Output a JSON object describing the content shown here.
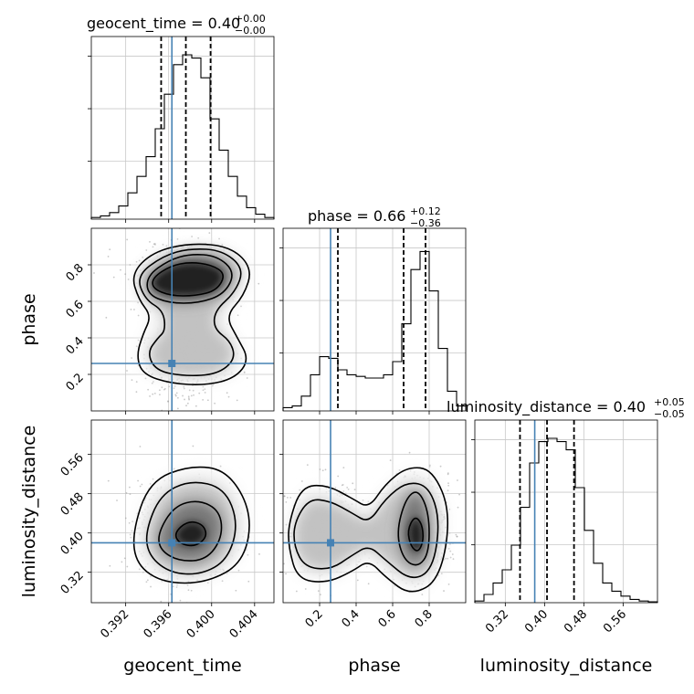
{
  "chart_data": {
    "type": "corner",
    "parameters": [
      "geocent_time",
      "phase",
      "luminosity_distance"
    ],
    "truth_color": "#4682b4",
    "truths": {
      "geocent_time": 0.3963,
      "phase": 0.26,
      "luminosity_distance": 0.38
    },
    "ranges": {
      "geocent_time": [
        0.3888,
        0.4058
      ],
      "phase": [
        0.0,
        1.0
      ],
      "luminosity_distance": [
        0.258,
        0.63
      ]
    },
    "ticks": {
      "geocent_time": [
        {
          "v": 0.392,
          "label": "0.392"
        },
        {
          "v": 0.396,
          "label": "0.396"
        },
        {
          "v": 0.4,
          "label": "0.400"
        },
        {
          "v": 0.404,
          "label": "0.404"
        }
      ],
      "phase": [
        {
          "v": 0.2,
          "label": "0.2"
        },
        {
          "v": 0.4,
          "label": "0.4"
        },
        {
          "v": 0.6,
          "label": "0.6"
        },
        {
          "v": 0.8,
          "label": "0.8"
        }
      ],
      "luminosity_distance": [
        {
          "v": 0.32,
          "label": "0.32"
        },
        {
          "v": 0.4,
          "label": "0.40"
        },
        {
          "v": 0.48,
          "label": "0.48"
        },
        {
          "v": 0.56,
          "label": "0.56"
        }
      ]
    },
    "axis_labels": {
      "x": [
        "geocent_time",
        "phase",
        "luminosity_distance"
      ],
      "y": [
        "phase",
        "luminosity_distance"
      ]
    },
    "titles": [
      {
        "param": "geocent_time",
        "main": "geocent_time = 0.40",
        "sup": "+0.00",
        "sub": "−0.00"
      },
      {
        "param": "phase",
        "main": "phase = 0.66",
        "sup": "+0.12",
        "sub": "−0.36"
      },
      {
        "param": "luminosity_distance",
        "main": "luminosity_distance = 0.40",
        "sup": "+0.05",
        "sub": "−0.05"
      }
    ],
    "quantile_lines": {
      "geocent_time": [
        0.3953,
        0.3976,
        0.3999
      ],
      "phase": [
        0.3,
        0.66,
        0.78
      ],
      "luminosity_distance": [
        0.35,
        0.405,
        0.46
      ]
    },
    "histograms": {
      "geocent_time": {
        "range": [
          0.3888,
          0.4058
        ],
        "counts": [
          0.01,
          0.02,
          0.04,
          0.08,
          0.16,
          0.26,
          0.38,
          0.55,
          0.76,
          0.94,
          1.0,
          0.98,
          0.86,
          0.61,
          0.42,
          0.26,
          0.14,
          0.07,
          0.03,
          0.01
        ]
      },
      "phase": {
        "range": [
          0.0,
          1.0
        ],
        "counts": [
          0.02,
          0.03,
          0.09,
          0.22,
          0.33,
          0.32,
          0.25,
          0.22,
          0.21,
          0.2,
          0.2,
          0.22,
          0.3,
          0.53,
          0.86,
          0.97,
          0.73,
          0.38,
          0.12,
          0.03
        ]
      },
      "luminosity_distance": {
        "range": [
          0.258,
          0.63
        ],
        "counts": [
          0.01,
          0.05,
          0.12,
          0.2,
          0.35,
          0.58,
          0.85,
          0.98,
          1.0,
          0.98,
          0.93,
          0.7,
          0.44,
          0.24,
          0.12,
          0.07,
          0.04,
          0.02,
          0.01,
          0.005
        ]
      }
    },
    "contours_2d": {
      "phase_vs_geocent_time": [
        [
          [
            0.3945,
            0.73
          ],
          [
            0.3962,
            0.795
          ],
          [
            0.398,
            0.815
          ],
          [
            0.4,
            0.8
          ],
          [
            0.4013,
            0.75
          ],
          [
            0.4005,
            0.66
          ],
          [
            0.3985,
            0.63
          ],
          [
            0.3962,
            0.63
          ],
          [
            0.3945,
            0.67
          ]
        ],
        [
          [
            0.394,
            0.74
          ],
          [
            0.396,
            0.825
          ],
          [
            0.398,
            0.86
          ],
          [
            0.4005,
            0.85
          ],
          [
            0.4022,
            0.76
          ],
          [
            0.4012,
            0.64
          ],
          [
            0.3988,
            0.59
          ],
          [
            0.396,
            0.59
          ],
          [
            0.394,
            0.64
          ]
        ],
        [
          [
            0.393,
            0.74
          ],
          [
            0.3955,
            0.85
          ],
          [
            0.398,
            0.89
          ],
          [
            0.401,
            0.88
          ],
          [
            0.403,
            0.78
          ],
          [
            0.4022,
            0.65
          ],
          [
            0.4003,
            0.55
          ],
          [
            0.4002,
            0.45
          ],
          [
            0.4018,
            0.38
          ],
          [
            0.4022,
            0.28
          ],
          [
            0.4005,
            0.2
          ],
          [
            0.3975,
            0.19
          ],
          [
            0.3948,
            0.22
          ],
          [
            0.394,
            0.32
          ],
          [
            0.395,
            0.4
          ],
          [
            0.3957,
            0.44
          ],
          [
            0.3955,
            0.55
          ],
          [
            0.3938,
            0.61
          ]
        ],
        [
          [
            0.3925,
            0.75
          ],
          [
            0.3945,
            0.87
          ],
          [
            0.398,
            0.92
          ],
          [
            0.4018,
            0.9
          ],
          [
            0.4038,
            0.78
          ],
          [
            0.403,
            0.63
          ],
          [
            0.4013,
            0.52
          ],
          [
            0.4024,
            0.4
          ],
          [
            0.4035,
            0.28
          ],
          [
            0.4022,
            0.18
          ],
          [
            0.3995,
            0.14
          ],
          [
            0.3962,
            0.15
          ],
          [
            0.3936,
            0.2
          ],
          [
            0.393,
            0.3
          ],
          [
            0.3936,
            0.42
          ],
          [
            0.3944,
            0.52
          ],
          [
            0.3932,
            0.61
          ]
        ]
      ],
      "luminosity_distance_vs_geocent_time": [
        [
          [
            0.3965,
            0.4
          ],
          [
            0.3978,
            0.425
          ],
          [
            0.3992,
            0.418
          ],
          [
            0.3996,
            0.393
          ],
          [
            0.3985,
            0.372
          ],
          [
            0.397,
            0.378
          ]
        ],
        [
          [
            0.395,
            0.4
          ],
          [
            0.3965,
            0.455
          ],
          [
            0.3988,
            0.468
          ],
          [
            0.4008,
            0.445
          ],
          [
            0.401,
            0.39
          ],
          [
            0.3995,
            0.345
          ],
          [
            0.397,
            0.342
          ],
          [
            0.3952,
            0.365
          ]
        ],
        [
          [
            0.3938,
            0.4
          ],
          [
            0.3952,
            0.478
          ],
          [
            0.398,
            0.508
          ],
          [
            0.4012,
            0.492
          ],
          [
            0.4025,
            0.42
          ],
          [
            0.4015,
            0.345
          ],
          [
            0.399,
            0.315
          ],
          [
            0.3962,
            0.318
          ],
          [
            0.3942,
            0.352
          ]
        ],
        [
          [
            0.3926,
            0.4
          ],
          [
            0.3942,
            0.505
          ],
          [
            0.398,
            0.538
          ],
          [
            0.4015,
            0.528
          ],
          [
            0.4038,
            0.44
          ],
          [
            0.403,
            0.34
          ],
          [
            0.3995,
            0.298
          ],
          [
            0.3955,
            0.298
          ],
          [
            0.393,
            0.335
          ]
        ]
      ],
      "luminosity_distance_vs_phase": [
        [
          [
            0.68,
            0.405
          ],
          [
            0.72,
            0.435
          ],
          [
            0.76,
            0.42
          ],
          [
            0.77,
            0.385
          ],
          [
            0.74,
            0.36
          ],
          [
            0.7,
            0.372
          ]
        ],
        [
          [
            0.62,
            0.4
          ],
          [
            0.67,
            0.47
          ],
          [
            0.74,
            0.49
          ],
          [
            0.8,
            0.44
          ],
          [
            0.8,
            0.36
          ],
          [
            0.74,
            0.33
          ],
          [
            0.66,
            0.345
          ]
        ],
        [
          [
            0.06,
            0.42
          ],
          [
            0.14,
            0.47
          ],
          [
            0.26,
            0.465
          ],
          [
            0.38,
            0.44
          ],
          [
            0.47,
            0.42
          ],
          [
            0.56,
            0.47
          ],
          [
            0.68,
            0.505
          ],
          [
            0.8,
            0.495
          ],
          [
            0.86,
            0.425
          ],
          [
            0.82,
            0.325
          ],
          [
            0.7,
            0.302
          ],
          [
            0.56,
            0.345
          ],
          [
            0.47,
            0.375
          ],
          [
            0.38,
            0.355
          ],
          [
            0.26,
            0.325
          ],
          [
            0.12,
            0.33
          ],
          [
            0.06,
            0.372
          ]
        ],
        [
          [
            0.03,
            0.42
          ],
          [
            0.1,
            0.495
          ],
          [
            0.24,
            0.498
          ],
          [
            0.38,
            0.47
          ],
          [
            0.47,
            0.45
          ],
          [
            0.56,
            0.5
          ],
          [
            0.68,
            0.535
          ],
          [
            0.82,
            0.53
          ],
          [
            0.92,
            0.44
          ],
          [
            0.86,
            0.305
          ],
          [
            0.7,
            0.272
          ],
          [
            0.56,
            0.31
          ],
          [
            0.47,
            0.345
          ],
          [
            0.38,
            0.322
          ],
          [
            0.24,
            0.298
          ],
          [
            0.08,
            0.305
          ],
          [
            0.03,
            0.37
          ]
        ]
      ]
    }
  }
}
